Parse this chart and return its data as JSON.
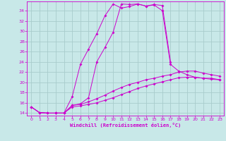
{
  "xlabel": "Windchill (Refroidissement éolien,°C)",
  "bg_color": "#c8e8e8",
  "grid_color": "#a8cccc",
  "line_color": "#cc00cc",
  "xlim": [
    -0.5,
    23.5
  ],
  "ylim": [
    13.5,
    35.8
  ],
  "xticks": [
    0,
    1,
    2,
    3,
    4,
    5,
    6,
    7,
    8,
    9,
    10,
    11,
    12,
    13,
    14,
    15,
    16,
    17,
    18,
    19,
    20,
    21,
    22,
    23
  ],
  "yticks": [
    14,
    16,
    18,
    20,
    22,
    24,
    26,
    28,
    30,
    32,
    34
  ],
  "curve1_x": [
    0,
    1,
    2,
    3,
    4,
    5,
    6,
    7,
    8,
    9,
    10,
    11,
    12,
    13,
    14,
    15,
    16,
    17
  ],
  "curve1_y": [
    15.2,
    14.1,
    14.0,
    14.0,
    14.0,
    17.2,
    23.5,
    26.5,
    29.5,
    33.0,
    35.3,
    34.5,
    34.8,
    35.3,
    34.9,
    35.2,
    35.0,
    24.0
  ],
  "curve2_x": [
    3,
    4,
    5,
    6,
    7,
    8,
    9,
    10,
    11,
    12,
    13,
    14,
    15,
    16,
    17,
    18,
    19,
    20,
    21,
    22,
    23
  ],
  "curve2_y": [
    14.0,
    14.0,
    15.5,
    15.8,
    17.0,
    24.0,
    26.8,
    29.8,
    35.3,
    35.2,
    35.3,
    34.9,
    35.1,
    34.0,
    23.5,
    22.2,
    21.5,
    21.0,
    20.8,
    20.8,
    20.5
  ],
  "curve3_x": [
    0,
    1,
    2,
    3,
    4,
    5,
    6,
    7,
    8,
    9,
    10,
    11,
    12,
    13,
    14,
    15,
    16,
    17,
    18,
    19,
    20,
    21,
    22,
    23
  ],
  "curve3_y": [
    15.2,
    14.1,
    14.0,
    14.0,
    14.0,
    15.5,
    15.7,
    16.2,
    16.8,
    17.5,
    18.3,
    19.0,
    19.6,
    20.0,
    20.5,
    20.8,
    21.2,
    21.5,
    22.0,
    22.2,
    22.2,
    21.8,
    21.5,
    21.2
  ],
  "curve4_x": [
    0,
    1,
    2,
    3,
    4,
    5,
    6,
    7,
    8,
    9,
    10,
    11,
    12,
    13,
    14,
    15,
    16,
    17,
    18,
    19,
    20,
    21,
    22,
    23
  ],
  "curve4_y": [
    15.2,
    14.1,
    14.0,
    14.0,
    14.0,
    15.2,
    15.4,
    15.7,
    16.0,
    16.5,
    17.0,
    17.6,
    18.2,
    18.8,
    19.3,
    19.7,
    20.1,
    20.5,
    20.9,
    21.0,
    21.0,
    20.8,
    20.6,
    20.5
  ]
}
